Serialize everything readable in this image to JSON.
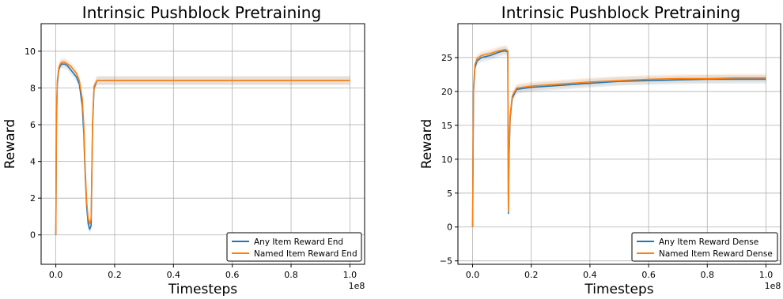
{
  "chart_data": [
    {
      "type": "line",
      "title": "Intrinsic Pushblock Pretraining",
      "xlabel": "Timesteps",
      "ylabel": "Reward",
      "x_multiplier_label": "1e8",
      "xlim": [
        -0.05,
        1.05
      ],
      "ylim": [
        -1.6,
        11.5
      ],
      "xticks": [
        0.0,
        0.2,
        0.4,
        0.6,
        0.8,
        1.0
      ],
      "xtick_labels": [
        "0.0",
        "0.2",
        "0.4",
        "0.6",
        "0.8",
        "1.0"
      ],
      "yticks": [
        0,
        2,
        4,
        6,
        8,
        10
      ],
      "ytick_labels": [
        "0",
        "2",
        "4",
        "6",
        "8",
        "10"
      ],
      "grid": true,
      "legend_position": "lower-right",
      "series": [
        {
          "name": "Any Item Reward End",
          "color": "#1f77b4",
          "x": [
            0.0,
            0.002,
            0.005,
            0.01,
            0.015,
            0.02,
            0.03,
            0.04,
            0.05,
            0.06,
            0.07,
            0.08,
            0.09,
            0.095,
            0.1,
            0.105,
            0.11,
            0.115,
            0.12,
            0.125,
            0.13,
            0.14,
            0.2,
            0.3,
            0.4,
            0.5,
            0.6,
            0.7,
            0.8,
            0.9,
            1.0
          ],
          "y": [
            0.0,
            6.0,
            8.2,
            9.0,
            9.2,
            9.3,
            9.3,
            9.2,
            9.0,
            8.8,
            8.6,
            8.2,
            7.0,
            5.5,
            3.2,
            1.5,
            0.6,
            0.3,
            0.5,
            6.0,
            8.0,
            8.4,
            8.4,
            8.4,
            8.4,
            8.4,
            8.4,
            8.4,
            8.4,
            8.4,
            8.4
          ]
        },
        {
          "name": "Named Item Reward End",
          "color": "#ff7f0e",
          "x": [
            0.0,
            0.002,
            0.005,
            0.01,
            0.015,
            0.02,
            0.03,
            0.04,
            0.05,
            0.06,
            0.07,
            0.08,
            0.09,
            0.095,
            0.1,
            0.105,
            0.11,
            0.115,
            0.12,
            0.125,
            0.13,
            0.14,
            0.2,
            0.3,
            0.4,
            0.5,
            0.6,
            0.7,
            0.8,
            0.9,
            1.0
          ],
          "y": [
            0.0,
            6.2,
            8.4,
            9.1,
            9.3,
            9.4,
            9.4,
            9.3,
            9.2,
            9.0,
            8.8,
            8.4,
            7.4,
            6.0,
            3.5,
            1.8,
            0.9,
            0.6,
            0.9,
            6.2,
            8.1,
            8.4,
            8.4,
            8.4,
            8.4,
            8.4,
            8.4,
            8.4,
            8.4,
            8.4,
            8.4
          ]
        }
      ]
    },
    {
      "type": "line",
      "title": "Intrinsic Pushblock Pretraining",
      "xlabel": "Timesteps",
      "ylabel": "Reward",
      "x_multiplier_label": "1e8",
      "xlim": [
        -0.05,
        1.05
      ],
      "ylim": [
        -5.5,
        30.0
      ],
      "xticks": [
        0.0,
        0.2,
        0.4,
        0.6,
        0.8,
        1.0
      ],
      "xtick_labels": [
        "0.0",
        "0.2",
        "0.4",
        "0.6",
        "0.8",
        "1.0"
      ],
      "yticks": [
        -5,
        0,
        5,
        10,
        15,
        20,
        25
      ],
      "ytick_labels": [
        "−5",
        "0",
        "5",
        "10",
        "15",
        "20",
        "25"
      ],
      "grid": true,
      "legend_position": "lower-right",
      "series": [
        {
          "name": "Any Item Reward Dense",
          "color": "#1f77b4",
          "x": [
            0.0,
            0.003,
            0.008,
            0.015,
            0.03,
            0.06,
            0.09,
            0.11,
            0.12,
            0.122,
            0.124,
            0.128,
            0.135,
            0.15,
            0.2,
            0.3,
            0.4,
            0.5,
            0.6,
            0.7,
            0.8,
            0.9,
            1.0
          ],
          "y": [
            0.0,
            20.0,
            23.5,
            24.5,
            25.0,
            25.3,
            25.8,
            26.0,
            25.8,
            2.0,
            10.0,
            16.0,
            19.0,
            20.3,
            20.6,
            20.9,
            21.2,
            21.5,
            21.6,
            21.7,
            21.8,
            21.8,
            21.8
          ]
        },
        {
          "name": "Named Item Reward Dense",
          "color": "#ff7f0e",
          "x": [
            0.0,
            0.003,
            0.008,
            0.015,
            0.03,
            0.06,
            0.09,
            0.11,
            0.12,
            0.122,
            0.124,
            0.128,
            0.135,
            0.15,
            0.2,
            0.3,
            0.4,
            0.5,
            0.6,
            0.7,
            0.8,
            0.9,
            1.0
          ],
          "y": [
            0.0,
            20.5,
            24.0,
            24.8,
            25.3,
            25.6,
            26.0,
            26.2,
            26.0,
            2.3,
            10.5,
            16.5,
            19.3,
            20.5,
            20.8,
            21.1,
            21.4,
            21.6,
            21.8,
            21.9,
            21.9,
            22.0,
            22.0
          ]
        }
      ]
    }
  ]
}
